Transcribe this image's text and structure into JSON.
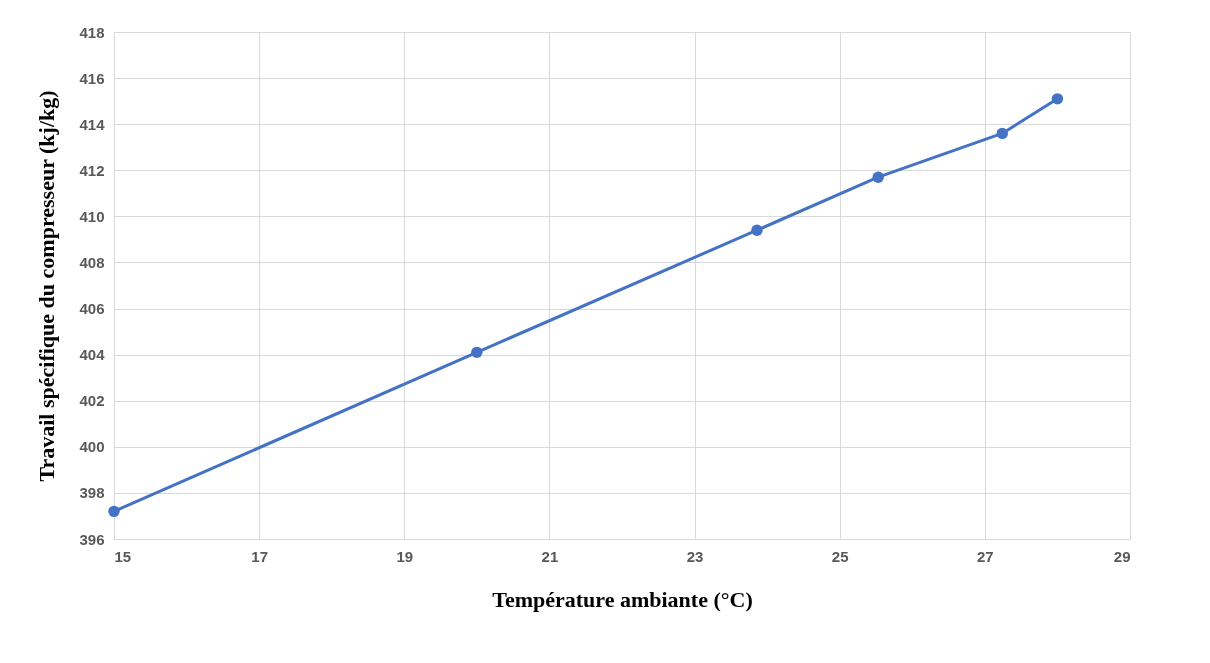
{
  "chart_data": {
    "type": "line",
    "xlabel": "Température ambiante (°C)",
    "ylabel": "Travail spécifique du compresseur (kj/kg)",
    "x": [
      15,
      20,
      23.86,
      25.53,
      27.24,
      28
    ],
    "series": [
      {
        "color": "#4472c4",
        "values": [
          397.2,
          404.1,
          409.4,
          411.7,
          413.6,
          415.1
        ]
      }
    ],
    "xlim": [
      15,
      29
    ],
    "xticks": [
      15,
      17,
      19,
      21,
      23,
      25,
      27,
      29
    ],
    "ylim": [
      396,
      418
    ],
    "yticks": [
      396,
      398,
      400,
      402,
      404,
      406,
      408,
      410,
      412,
      414,
      416,
      418
    ],
    "grid": true,
    "marker": "circle",
    "line_style": "solid"
  }
}
